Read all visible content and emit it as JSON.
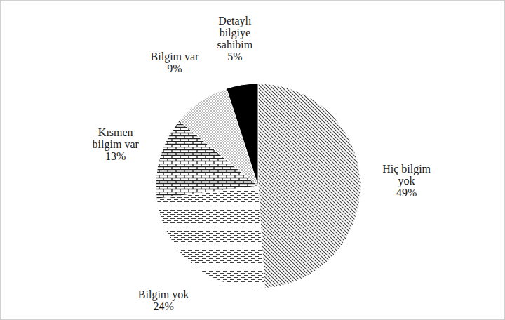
{
  "chart_data": {
    "type": "pie",
    "categories": [
      "Hiç bilgim\nyok",
      "Bilgim yok",
      "Kısmen\nbilgim var",
      "Bilgim var",
      "Detaylı\nbilgiye\nsahibim"
    ],
    "values": [
      49,
      24,
      13,
      9,
      5
    ],
    "value_labels": [
      "49%",
      "24%",
      "13%",
      "9%",
      "5%"
    ],
    "data_labels": true,
    "colors": [
      "#444444",
      "#444444",
      "#222222",
      "#666666",
      "#000000"
    ]
  }
}
